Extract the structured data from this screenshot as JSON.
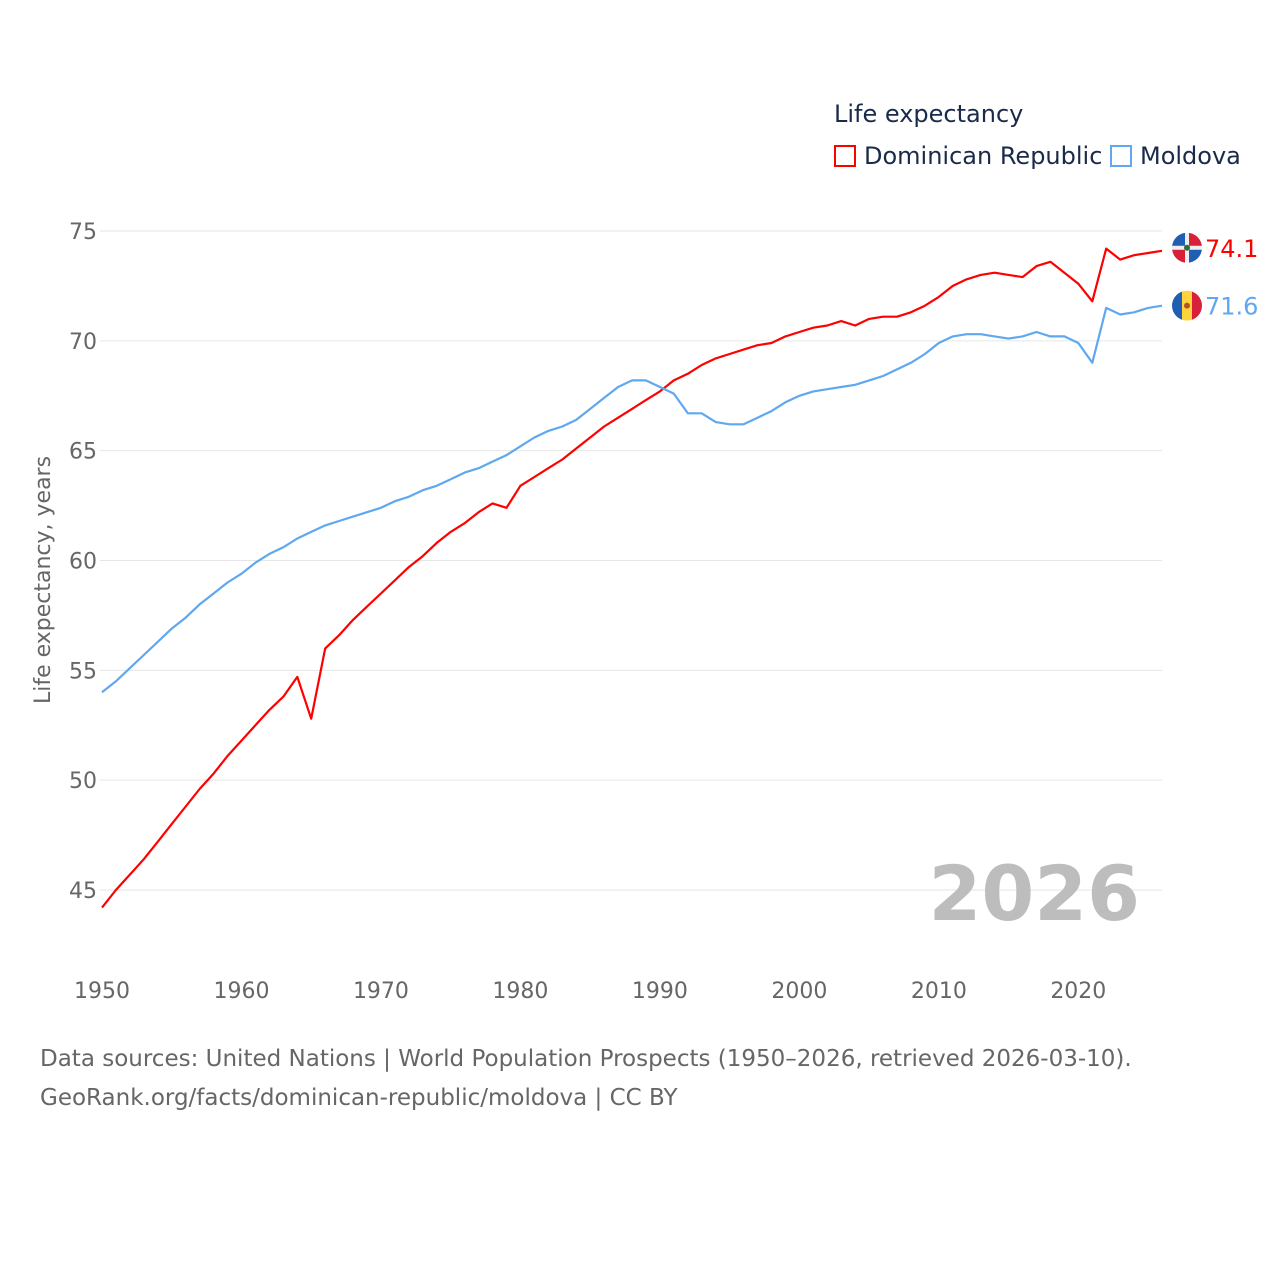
{
  "chart_data": {
    "type": "line",
    "title": "Life expectancy",
    "xlabel": "",
    "ylabel": "Life expectancy, years",
    "xlim": [
      1950,
      2026
    ],
    "ylim": [
      45,
      75
    ],
    "x_ticks": [
      "1950",
      "1960",
      "1970",
      "1980",
      "1990",
      "2000",
      "2010",
      "2020"
    ],
    "y_ticks": [
      "45",
      "50",
      "55",
      "60",
      "65",
      "70",
      "75"
    ],
    "grid": true,
    "legend_position": "top-right",
    "year_label": "2026",
    "x_start": 1950,
    "series": [
      {
        "name": "Dominican Republic",
        "color": "#ff0000",
        "end_label": "74.1",
        "values": [
          44.2,
          45.0,
          45.7,
          46.4,
          47.2,
          48.0,
          48.8,
          49.6,
          50.3,
          51.1,
          51.8,
          52.5,
          53.2,
          53.8,
          54.7,
          52.8,
          56.0,
          56.6,
          57.3,
          57.9,
          58.5,
          59.1,
          59.7,
          60.2,
          60.8,
          61.3,
          61.7,
          62.2,
          62.6,
          62.4,
          63.4,
          63.8,
          64.2,
          64.6,
          65.1,
          65.6,
          66.1,
          66.5,
          66.9,
          67.3,
          67.7,
          68.2,
          68.5,
          68.9,
          69.2,
          69.4,
          69.6,
          69.8,
          69.9,
          70.2,
          70.4,
          70.6,
          70.7,
          70.9,
          70.7,
          71.0,
          71.1,
          71.1,
          71.3,
          71.6,
          72.0,
          72.5,
          72.8,
          73.0,
          73.1,
          73.0,
          72.9,
          73.4,
          73.6,
          73.1,
          72.6,
          71.8,
          74.2,
          73.7,
          73.9,
          74.0,
          74.1
        ]
      },
      {
        "name": "Moldova",
        "color": "#5fa8ef",
        "end_label": "71.6",
        "values": [
          54.0,
          54.5,
          55.1,
          55.7,
          56.3,
          56.9,
          57.4,
          58.0,
          58.5,
          59.0,
          59.4,
          59.9,
          60.3,
          60.6,
          61.0,
          61.3,
          61.6,
          61.8,
          62.0,
          62.2,
          62.4,
          62.7,
          62.9,
          63.2,
          63.4,
          63.7,
          64.0,
          64.2,
          64.5,
          64.8,
          65.2,
          65.6,
          65.9,
          66.1,
          66.4,
          66.9,
          67.4,
          67.9,
          68.2,
          68.2,
          67.9,
          67.6,
          66.7,
          66.7,
          66.3,
          66.2,
          66.2,
          66.5,
          66.8,
          67.2,
          67.5,
          67.7,
          67.8,
          67.9,
          68.0,
          68.2,
          68.4,
          68.7,
          69.0,
          69.4,
          69.9,
          70.2,
          70.3,
          70.3,
          70.2,
          70.1,
          70.2,
          70.4,
          70.2,
          70.2,
          69.9,
          69.0,
          71.5,
          71.2,
          71.3,
          71.5,
          71.6
        ]
      }
    ]
  },
  "source": {
    "line1": "Data sources: United Nations | World Population Prospects (1950–2026, retrieved 2026-03-10).",
    "line2": "GeoRank.org/facts/dominican-republic/moldova | CC BY"
  }
}
